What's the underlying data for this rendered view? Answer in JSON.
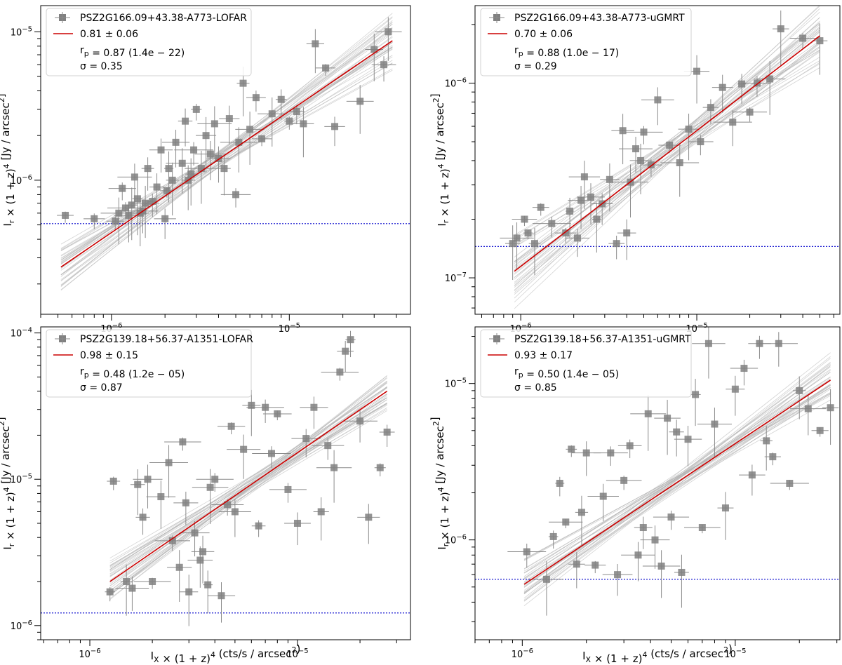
{
  "chart_data": [
    {
      "type": "scatter",
      "xscale": "log",
      "yscale": "log",
      "xlim": [
        4e-07,
        4.8e-05
      ],
      "ylim": [
        1.25e-07,
        1.5e-05
      ],
      "xticks": [
        1e-06,
        1e-05
      ],
      "xticklabels": [
        "10^-6",
        "10^-5"
      ],
      "yticks": [
        1e-06,
        1e-05
      ],
      "yticklabels": [
        "10^-6",
        "10^-5"
      ],
      "ylabel": "I_r × (1 + z)^4 [Jy / arcsec^2]",
      "xlabel": "",
      "legend": {
        "placement": "top-left",
        "entries": [
          "PSZ2G166.09+43.38-A773-LOFAR",
          "0.81 ± 0.06",
          "r_p = 0.87 (1.4e − 22)",
          "σ = 0.35"
        ]
      },
      "series": [
        {
          "name": "PSZ2G166.09+43.38-A773-LOFAR",
          "kind": "points",
          "x": [
            5.5e-07,
            8e-07,
            1.05e-06,
            1.1e-06,
            1.15e-06,
            1.2e-06,
            1.25e-06,
            1.3e-06,
            1.35e-06,
            1.4e-06,
            1.45e-06,
            1.5e-06,
            1.55e-06,
            1.6e-06,
            1.7e-06,
            1.8e-06,
            1.9e-06,
            2e-06,
            2.05e-06,
            2.1e-06,
            2.2e-06,
            2.3e-06,
            2.5e-06,
            2.6e-06,
            2.7e-06,
            2.8e-06,
            2.9e-06,
            3e-06,
            3.2e-06,
            3.4e-06,
            3.6e-06,
            3.8e-06,
            4e-06,
            4.3e-06,
            4.6e-06,
            5e-06,
            5.2e-06,
            5.5e-06,
            6e-06,
            6.5e-06,
            7e-06,
            8e-06,
            9e-06,
            1e-05,
            1.1e-05,
            1.2e-05,
            1.4e-05,
            1.6e-05,
            1.8e-05,
            2.5e-05,
            3e-05,
            3.4e-05,
            3.6e-05
          ],
          "y": [
            5.8e-07,
            5.5e-07,
            5.3e-07,
            6e-07,
            8.8e-07,
            6.5e-07,
            5.8e-07,
            6.8e-07,
            1.05e-06,
            7.5e-07,
            6e-07,
            6.2e-07,
            7e-07,
            1.2e-06,
            7.2e-07,
            9e-07,
            1.6e-06,
            5.5e-07,
            8.5e-07,
            1.2e-06,
            1e-06,
            1.8e-06,
            1.3e-06,
            2.5e-06,
            1e-06,
            1.1e-06,
            1.6e-06,
            3e-06,
            1.2e-06,
            2e-06,
            1.5e-06,
            2.4e-06,
            1.4e-06,
            1.2e-06,
            2.6e-06,
            8e-07,
            1.8e-06,
            4.5e-06,
            2.2e-06,
            3.6e-06,
            1.9e-06,
            2.8e-06,
            3.5e-06,
            2.5e-06,
            2.9e-06,
            2.4e-06,
            8.3e-06,
            5.7e-06,
            2.3e-06,
            3.4e-06,
            7.6e-06,
            6e-06,
            1e-05
          ],
          "color": "#808080"
        },
        {
          "name": "0.81 ± 0.06",
          "kind": "fit",
          "x": [
            5.2e-07,
            3.8e-05
          ],
          "y": [
            2.6e-07,
            8.7e-06
          ],
          "color": "#cc0000"
        },
        {
          "name": "",
          "kind": "threshold",
          "y": 5.1e-07,
          "color": "#0000cc"
        }
      ]
    },
    {
      "type": "scatter",
      "xscale": "log",
      "yscale": "log",
      "xlim": [
        5.5e-07,
        6.5e-05
      ],
      "ylim": [
        6.5e-08,
        2.5e-06
      ],
      "xticks": [
        1e-06,
        1e-05
      ],
      "xticklabels": [
        "10^-6",
        "10^-5"
      ],
      "yticks": [
        1e-07,
        1e-06
      ],
      "yticklabels": [
        "10^-7",
        "10^-6"
      ],
      "ylabel": "I_r × (1 + z)^4 [Jy / arcsec^2]",
      "xlabel": "",
      "legend": {
        "placement": "top-left",
        "entries": [
          "PSZ2G166.09+43.38-A773-uGMRT",
          "0.70 ± 0.06",
          "r_p = 0.88 (1.0e − 17)",
          "σ = 0.29"
        ]
      },
      "series": [
        {
          "name": "PSZ2G166.09+43.38-A773-uGMRT",
          "kind": "points",
          "x": [
            9e-07,
            9.5e-07,
            1.05e-06,
            1.1e-06,
            1.2e-06,
            1.3e-06,
            1.5e-06,
            1.8e-06,
            1.9e-06,
            2.1e-06,
            2.2e-06,
            2.3e-06,
            2.5e-06,
            2.7e-06,
            2.9e-06,
            3.2e-06,
            3.5e-06,
            3.8e-06,
            4e-06,
            4.2e-06,
            4.5e-06,
            4.8e-06,
            5e-06,
            5.5e-06,
            6e-06,
            7e-06,
            8e-06,
            9e-06,
            1e-05,
            1.05e-05,
            1.2e-05,
            1.4e-05,
            1.6e-05,
            1.8e-05,
            2e-05,
            2.2e-05,
            2.6e-05,
            3e-05,
            4e-05,
            5e-05
          ],
          "y": [
            1.5e-07,
            1.6e-07,
            2e-07,
            1.7e-07,
            1.5e-07,
            2.3e-07,
            1.9e-07,
            1.7e-07,
            2.2e-07,
            1.6e-07,
            2.5e-07,
            3.3e-07,
            2.6e-07,
            2e-07,
            2.4e-07,
            3.2e-07,
            1.5e-07,
            5.7e-07,
            1.7e-07,
            3.1e-07,
            4.6e-07,
            4e-07,
            5.6e-07,
            3.8e-07,
            8.2e-07,
            4.8e-07,
            3.9e-07,
            5.8e-07,
            1.15e-06,
            5e-07,
            7.5e-07,
            9.5e-07,
            6.3e-07,
            9.9e-07,
            7.1e-07,
            1e-06,
            1.05e-06,
            1.9e-06,
            1.7e-06,
            1.65e-06
          ],
          "color": "#808080"
        },
        {
          "name": "0.70 ± 0.06",
          "kind": "fit",
          "x": [
            9.2e-07,
            5e-05
          ],
          "y": [
            1.08e-07,
            1.75e-06
          ],
          "color": "#cc0000"
        },
        {
          "name": "",
          "kind": "threshold",
          "y": 1.45e-07,
          "color": "#0000cc"
        }
      ]
    },
    {
      "type": "scatter",
      "xscale": "log",
      "yscale": "log",
      "xlim": [
        5.8e-07,
        3.5e-05
      ],
      "ylim": [
        8e-07,
        0.00011
      ],
      "xticks": [
        1e-06,
        1e-05
      ],
      "xticklabels": [
        "10^-6",
        "10^-5"
      ],
      "yticks": [
        1e-06,
        1e-05,
        0.0001
      ],
      "yticklabels": [
        "10^-6",
        "10^-5",
        "10^-4"
      ],
      "ylabel": "I_r × (1 + z)^4 [Jy / arcsec^2]",
      "xlabel": "I_X × (1 + z)^4 (cts/s / arcsec^2)",
      "legend": {
        "placement": "top-left",
        "entries": [
          "PSZ2G139.18+56.37-A1351-LOFAR",
          "0.98 ± 0.15",
          "r_p = 0.48 (1.2e − 05)",
          "σ = 0.87"
        ]
      },
      "series": [
        {
          "name": "PSZ2G139.18+56.37-A1351-LOFAR",
          "kind": "points",
          "x": [
            1.25e-06,
            1.3e-06,
            1.5e-06,
            1.6e-06,
            1.7e-06,
            1.8e-06,
            1.9e-06,
            2e-06,
            2.2e-06,
            2.4e-06,
            2.5e-06,
            2.7e-06,
            2.8e-06,
            2.9e-06,
            3e-06,
            3.2e-06,
            3.4e-06,
            3.5e-06,
            3.7e-06,
            3.8e-06,
            4e-06,
            4.3e-06,
            4.6e-06,
            4.8e-06,
            5e-06,
            5.5e-06,
            6e-06,
            6.5e-06,
            7e-06,
            7.5e-06,
            8e-06,
            9e-06,
            1e-05,
            1.1e-05,
            1.2e-05,
            1.3e-05,
            1.4e-05,
            1.5e-05,
            1.6e-05,
            1.7e-05,
            1.8e-05,
            2e-05,
            2.2e-05,
            2.5e-05,
            2.7e-05
          ],
          "y": [
            1.7e-06,
            9.7e-06,
            2e-06,
            1.8e-06,
            9.2e-06,
            5.5e-06,
            1e-05,
            2e-06,
            7.6e-06,
            1.3e-05,
            3.8e-06,
            2.5e-06,
            1.8e-05,
            6.9e-06,
            1.7e-06,
            4.3e-06,
            2.8e-06,
            3.2e-06,
            1.9e-06,
            8.8e-06,
            1e-05,
            1.6e-06,
            6.7e-06,
            2.3e-05,
            6e-06,
            1.6e-05,
            3.2e-05,
            4.8e-06,
            3.1e-05,
            1.5e-05,
            2.8e-05,
            8.5e-06,
            5e-06,
            1.9e-05,
            3.1e-05,
            6e-06,
            1.7e-05,
            1.2e-05,
            5.4e-05,
            7.5e-05,
            9e-05,
            2.5e-05,
            5.5e-06,
            1.2e-05,
            2.1e-05
          ],
          "color": "#808080"
        },
        {
          "name": "0.98 ± 0.15",
          "kind": "fit",
          "x": [
            1.25e-06,
            2.7e-05
          ],
          "y": [
            2e-06,
            4e-05
          ],
          "color": "#cc0000"
        },
        {
          "name": "",
          "kind": "threshold",
          "y": 1.22e-06,
          "color": "#0000cc"
        }
      ]
    },
    {
      "type": "scatter",
      "xscale": "log",
      "yscale": "log",
      "xlim": [
        6e-07,
        3.1e-05
      ],
      "ylim": [
        2.3e-07,
        2.3e-05
      ],
      "xticks": [
        1e-06,
        1e-05
      ],
      "xticklabels": [
        "10^-6",
        "10^-5"
      ],
      "yticks": [
        1e-06,
        1e-05
      ],
      "yticklabels": [
        "10^-6",
        "10^-5"
      ],
      "ylabel": "I_r × (1 + z)^4 [Jy / arcsec^2]",
      "xlabel": "I_X × (1 + z)^4 (cts/s / arcsec^2)",
      "legend": {
        "placement": "top-left",
        "entries": [
          "PSZ2G139.18+56.37-A1351-uGMRT",
          "0.93 ± 0.17",
          "r_p = 0.50 (1.4e − 05)",
          "σ = 0.85"
        ]
      },
      "series": [
        {
          "name": "PSZ2G139.18+56.37-A1351-uGMRT",
          "kind": "points",
          "x": [
            1.05e-06,
            1.3e-06,
            1.4e-06,
            1.5e-06,
            1.6e-06,
            1.7e-06,
            1.8e-06,
            1.9e-06,
            2e-06,
            2.2e-06,
            2.4e-06,
            2.6e-06,
            2.8e-06,
            3e-06,
            3.2e-06,
            3.5e-06,
            3.7e-06,
            3.9e-06,
            4.2e-06,
            4.5e-06,
            4.8e-06,
            5e-06,
            5.3e-06,
            5.6e-06,
            6e-06,
            6.5e-06,
            7e-06,
            7.5e-06,
            8e-06,
            9e-06,
            1e-05,
            1.1e-05,
            1.2e-05,
            1.3e-05,
            1.4e-05,
            1.5e-05,
            1.6e-05,
            1.8e-05,
            2e-05,
            2.2e-05,
            2.5e-05,
            2.8e-05
          ],
          "y": [
            8.4e-07,
            5.6e-07,
            1.05e-06,
            2.3e-06,
            1.3e-06,
            3.8e-06,
            7e-07,
            1.5e-06,
            3.6e-06,
            6.9e-07,
            1.9e-06,
            3.6e-06,
            6e-07,
            2.4e-06,
            4e-06,
            8e-07,
            1.2e-06,
            6.4e-06,
            1e-06,
            6.8e-07,
            6e-06,
            1.4e-06,
            4.9e-06,
            6.2e-07,
            4.4e-06,
            8.5e-06,
            1.2e-06,
            1.8e-05,
            5.5e-06,
            1.6e-06,
            9.2e-06,
            1.25e-05,
            2.6e-06,
            1.8e-05,
            4.3e-06,
            3.4e-06,
            1.8e-05,
            2.3e-06,
            9e-06,
            6.9e-06,
            5e-06,
            7e-06
          ],
          "color": "#808080"
        },
        {
          "name": "0.93 ± 0.17",
          "kind": "fit",
          "x": [
            1.02e-06,
            2.8e-05
          ],
          "y": [
            5.2e-07,
            1.05e-05
          ],
          "color": "#cc0000"
        },
        {
          "name": "",
          "kind": "threshold",
          "y": 5.6e-07,
          "color": "#0000cc"
        }
      ]
    }
  ]
}
